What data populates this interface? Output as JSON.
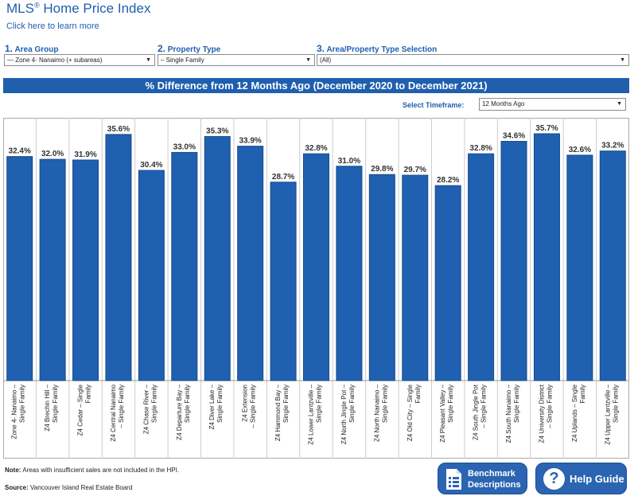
{
  "header": {
    "title": "MLS",
    "title_mark": "®",
    "title_rest": " Home Price Index",
    "learn_link": "Click here to learn more"
  },
  "filters": {
    "area_group_num": "1.",
    "area_group_label": "Area Group",
    "area_group_value": "— Zone 4- Nanaimo (+ subareas)",
    "property_type_num": "2.",
    "property_type_label": "Property Type",
    "property_type_value": "– Single Family",
    "selection_num": "3.",
    "selection_label": "Area/Property Type Selection",
    "selection_value": "(All)"
  },
  "banner": "% Difference from 12 Months Ago (December 2020 to December 2021)",
  "timeframe": {
    "label": "Select Timeframe:",
    "value": "12 Months Ago"
  },
  "chart_data": {
    "type": "bar",
    "title": "% Difference from 12 Months Ago (December 2020 to December 2021)",
    "ylim": [
      0,
      38
    ],
    "grid": false,
    "color": "#2060b0",
    "categories": [
      [
        "Zone 4- Nanaimo –",
        "Single Family"
      ],
      [
        "Z4 Brechin Hill –",
        "Single Family"
      ],
      [
        "Z4 Cedar – Single",
        "Family"
      ],
      [
        "Z4 Central Nanaimo",
        "– Single Family"
      ],
      [
        "Z4 Chase River –",
        "Single Family"
      ],
      [
        "Z4 Departure Bay –",
        "Single Family"
      ],
      [
        "Z4 Diver Lake –",
        "Single Family"
      ],
      [
        "Z4 Extension",
        "– Single Family"
      ],
      [
        "Z4 Hammond Bay –",
        "Single Family"
      ],
      [
        "Z4 Lower Lantzville –",
        "Single Family"
      ],
      [
        "Z4 North Jingle Pot –",
        "Single Family"
      ],
      [
        "Z4 North Nanaimo –",
        "Single Family"
      ],
      [
        "Z4 Old City – Single",
        "Family"
      ],
      [
        "Z4 Pleasant Valley –",
        "Single Family"
      ],
      [
        "Z4 South Jingle Pot",
        "– Single Family"
      ],
      [
        "Z4 South Nanaimo –",
        "Single Family"
      ],
      [
        "Z4 University District",
        "– Single Family"
      ],
      [
        "Z4 Uplands – Single",
        "Family"
      ],
      [
        "Z4 Upper Lantzville –",
        "Single Family"
      ]
    ],
    "values": [
      32.4,
      32.0,
      31.9,
      35.6,
      30.4,
      33.0,
      35.3,
      33.9,
      28.7,
      32.8,
      31.0,
      29.8,
      29.7,
      28.2,
      32.8,
      34.6,
      35.7,
      32.6,
      33.2
    ],
    "labels": [
      "32.4%",
      "32.0%",
      "31.9%",
      "35.6%",
      "30.4%",
      "33.0%",
      "35.3%",
      "33.9%",
      "28.7%",
      "32.8%",
      "31.0%",
      "29.8%",
      "29.7%",
      "28.2%",
      "32.8%",
      "34.6%",
      "35.7%",
      "32.6%",
      "33.2%"
    ]
  },
  "footer": {
    "note_label": "Note:",
    "note_text": " Areas with insufficient sales are not included in the HPI.",
    "source_label": "Source:",
    "source_text": " Vancouver Island Real Estate Board"
  },
  "buttons": {
    "benchmark_line1": "Benchmark",
    "benchmark_line2": "Descriptions",
    "help": "Help Guide"
  }
}
